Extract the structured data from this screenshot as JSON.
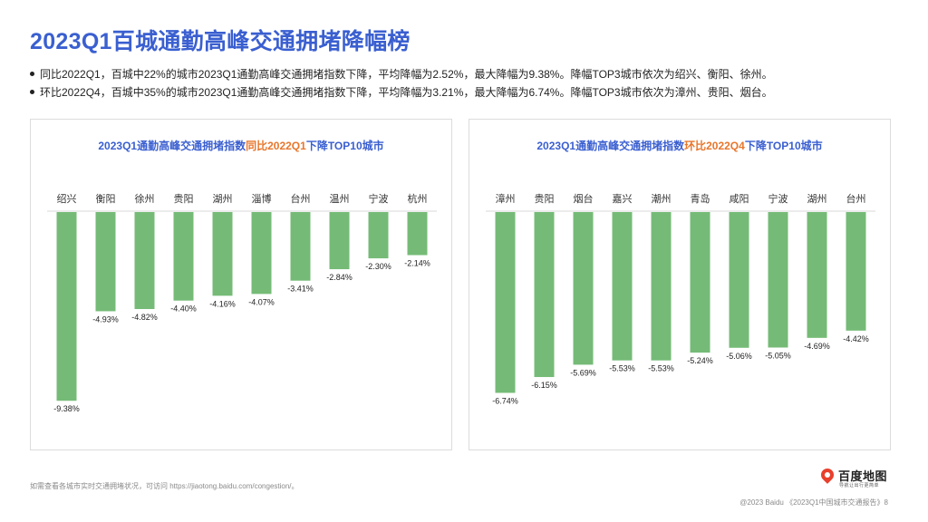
{
  "page": {
    "title": "2023Q1百城通勤高峰交通拥堵降幅榜",
    "bullets": [
      "同比2022Q1，百城中22%的城市2023Q1通勤高峰交通拥堵指数下降，平均降幅为2.52%，最大降幅为9.38%。降幅TOP3城市依次为绍兴、衡阳、徐州。",
      "环比2022Q4，百城中35%的城市2023Q1通勤高峰交通拥堵指数下降，平均降幅为3.21%，最大降幅为6.74%。降幅TOP3城市依次为漳州、贵阳、烟台。"
    ],
    "footnote": "如需查看各城市实时交通拥堵状况，可访问 https://jiaotong.baidu.com/congestion/。",
    "copyright": "@2023 Baidu 《2023Q1中国城市交通报告》8",
    "logo": {
      "brand": "百度地图",
      "tagline": "导航让出行更简单"
    },
    "colors": {
      "title": "#3a5fd0",
      "highlight": "#e8762b",
      "bar": "#75bb77"
    }
  },
  "chart_data": [
    {
      "type": "bar",
      "title": "2023Q1通勤高峰交通拥堵指数同比2022Q1下降TOP10城市",
      "title_parts": [
        "2023Q1通勤高峰交通拥堵指数",
        "同比2022Q1",
        "下降TOP10城市"
      ],
      "categories": [
        "绍兴",
        "衡阳",
        "徐州",
        "贵阳",
        "湖州",
        "淄博",
        "台州",
        "温州",
        "宁波",
        "杭州"
      ],
      "values": [
        -9.38,
        -4.93,
        -4.82,
        -4.4,
        -4.16,
        -4.07,
        -3.41,
        -2.84,
        -2.3,
        -2.14
      ],
      "value_labels": [
        "-9.38%",
        "-4.93%",
        "-4.82%",
        "-4.40%",
        "-4.16%",
        "-4.07%",
        "-3.41%",
        "-2.84%",
        "-2.30%",
        "-2.14%"
      ],
      "ylim": [
        -10,
        0
      ],
      "grid": false,
      "legend": "none"
    },
    {
      "type": "bar",
      "title": "2023Q1通勤高峰交通拥堵指数环比2022Q4下降TOP10城市",
      "title_parts": [
        "2023Q1通勤高峰交通拥堵指数",
        "环比2022Q4",
        "下降TOP10城市"
      ],
      "categories": [
        "漳州",
        "贵阳",
        "烟台",
        "嘉兴",
        "潮州",
        "青岛",
        "咸阳",
        "宁波",
        "湖州",
        "台州"
      ],
      "values": [
        -6.74,
        -6.15,
        -5.69,
        -5.53,
        -5.53,
        -5.24,
        -5.06,
        -5.05,
        -4.69,
        -4.42
      ],
      "value_labels": [
        "-6.74%",
        "-6.15%",
        "-5.69%",
        "-5.53%",
        "-5.53%",
        "-5.24%",
        "-5.06%",
        "-5.05%",
        "-4.69%",
        "-4.42%"
      ],
      "ylim": [
        -7.5,
        0
      ],
      "grid": false,
      "legend": "none"
    }
  ]
}
